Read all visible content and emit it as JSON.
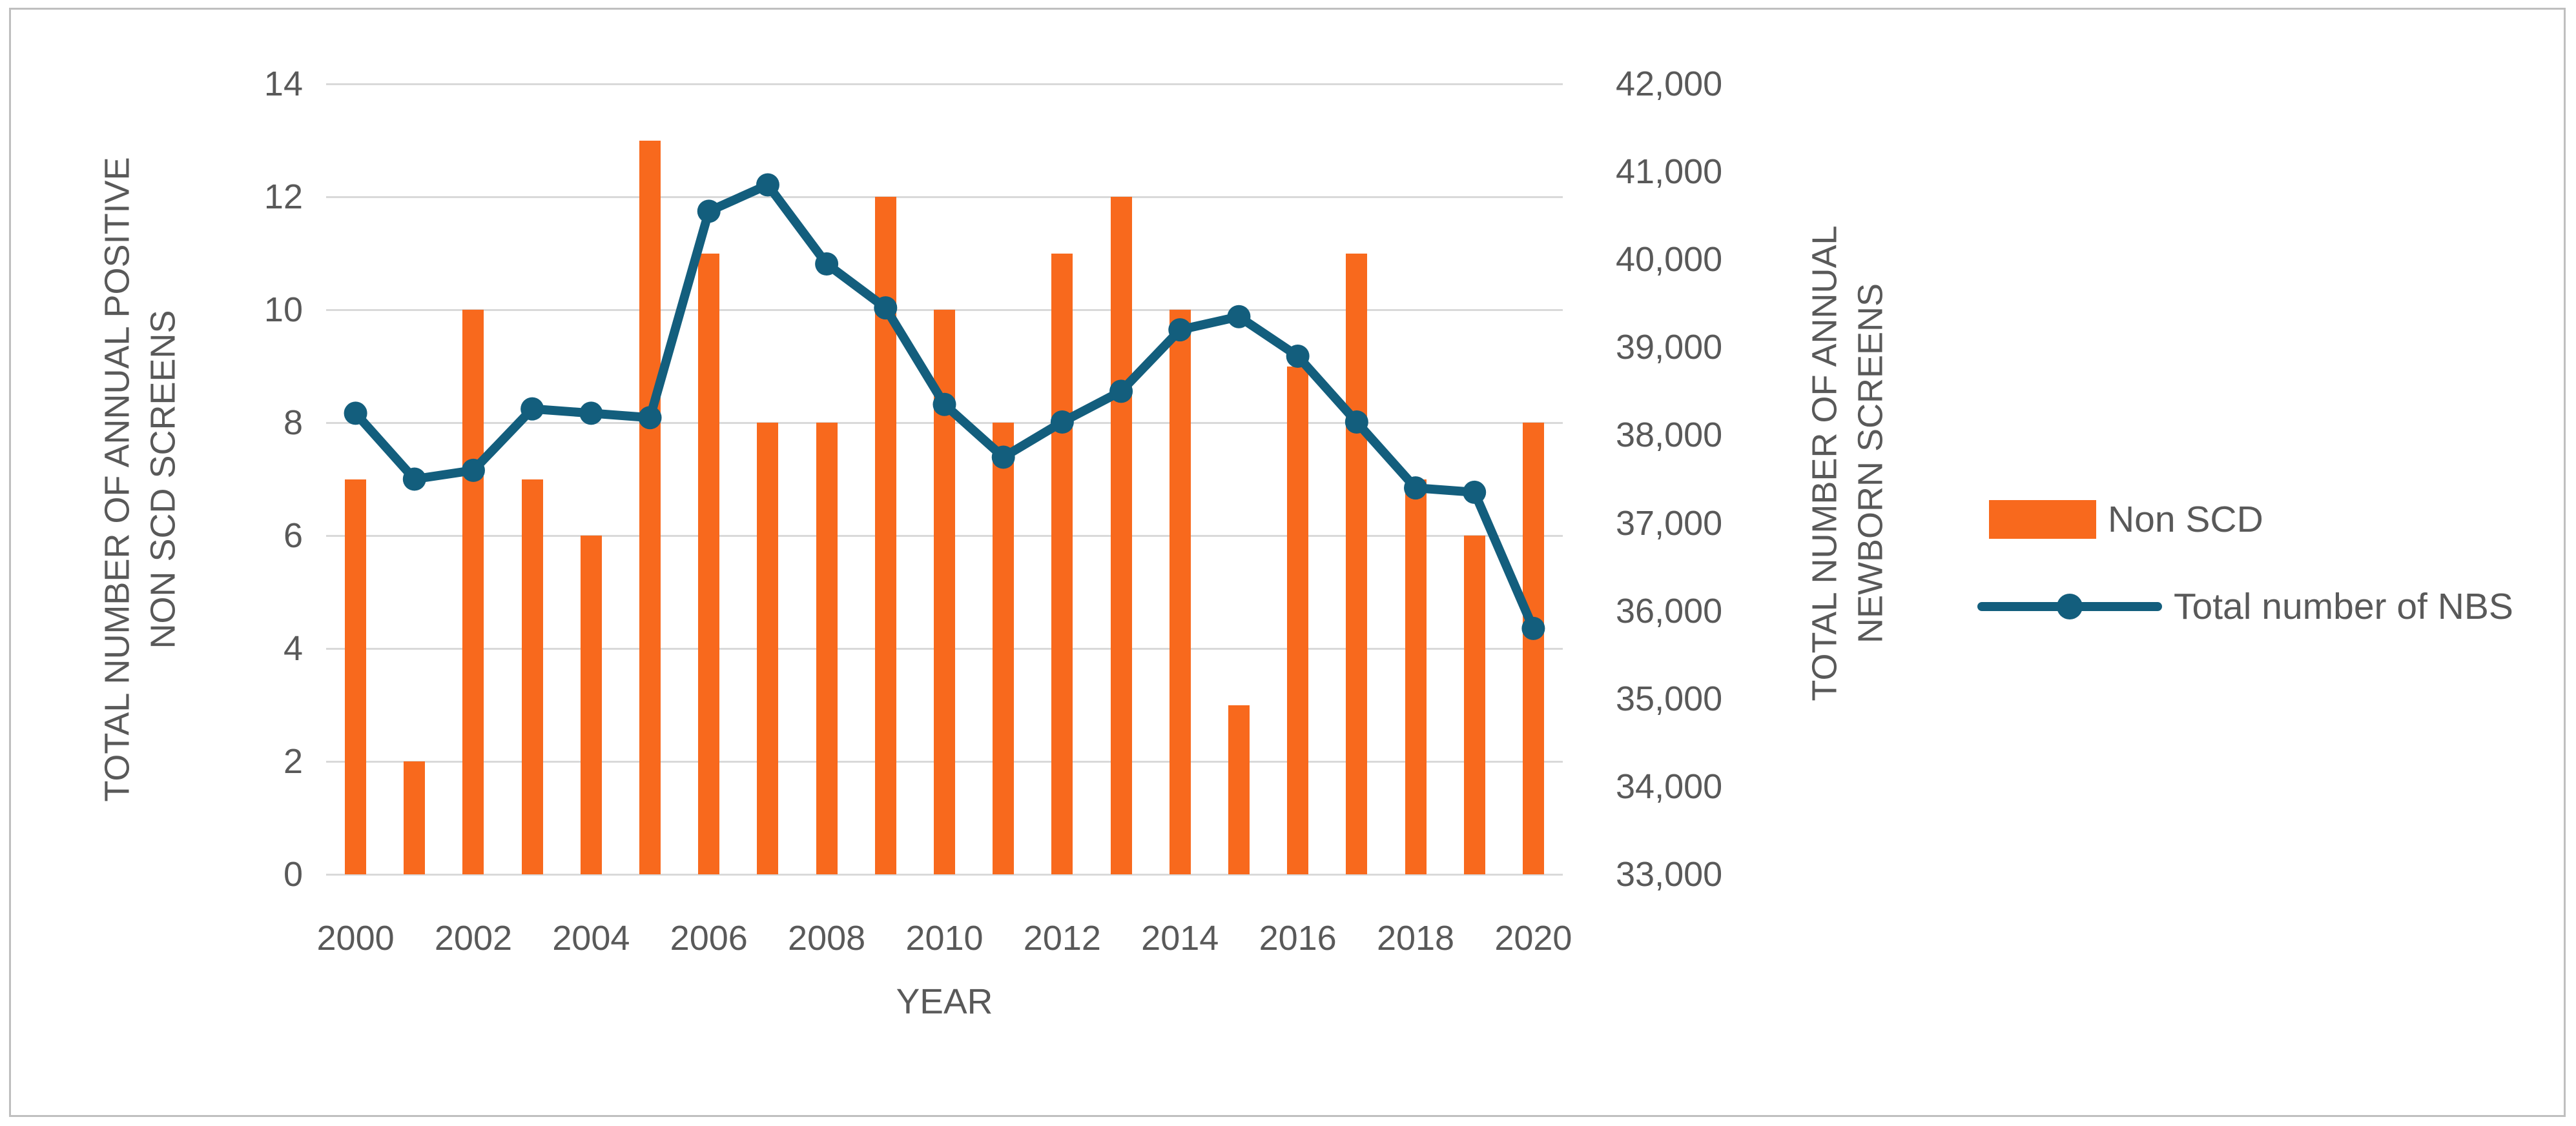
{
  "chart_data": {
    "type": "combo",
    "combo_types": [
      "bar",
      "line"
    ],
    "categories": [
      2000,
      2001,
      2002,
      2003,
      2004,
      2005,
      2006,
      2007,
      2008,
      2009,
      2010,
      2011,
      2012,
      2013,
      2014,
      2015,
      2016,
      2017,
      2018,
      2019,
      2020
    ],
    "series": [
      {
        "name": "Non SCD",
        "type": "bar",
        "axis": "left",
        "values": [
          7,
          2,
          10,
          7,
          6,
          13,
          11,
          8,
          8,
          12,
          10,
          8,
          11,
          12,
          10,
          3,
          9,
          11,
          7,
          6,
          8
        ]
      },
      {
        "name": "Total number of NBS",
        "type": "line",
        "axis": "right",
        "values": [
          38250,
          37500,
          37600,
          38300,
          38250,
          38200,
          40550,
          40850,
          39950,
          39450,
          38350,
          37750,
          38150,
          38500,
          39200,
          39350,
          38900,
          38150,
          37400,
          37350,
          35800
        ]
      }
    ],
    "left_axis": {
      "title_line1": "TOTAL NUMBER OF ANNUAL POSITIVE",
      "title_line2": "NON SCD SCREENS",
      "min": 0,
      "max": 14,
      "step": 2,
      "ticks": [
        "0",
        "2",
        "4",
        "6",
        "8",
        "10",
        "12",
        "14"
      ]
    },
    "right_axis": {
      "title_line1": "TOTAL NUMBER OF ANNUAL",
      "title_line2": "NEWBORN SCREENS",
      "min": 33000,
      "max": 42000,
      "step": 1000,
      "ticks": [
        "33,000",
        "34,000",
        "35,000",
        "36,000",
        "37,000",
        "38,000",
        "39,000",
        "40,000",
        "41,000",
        "42,000"
      ]
    },
    "x_axis": {
      "title": "YEAR",
      "tick_labels": [
        "2000",
        "2002",
        "2004",
        "2006",
        "2008",
        "2010",
        "2012",
        "2014",
        "2016",
        "2018",
        "2020"
      ]
    },
    "legend": {
      "position": "right",
      "items": [
        {
          "label": "Non SCD",
          "swatch": "bar"
        },
        {
          "label": "Total number of NBS",
          "swatch": "line-marker"
        }
      ]
    },
    "grid": "horizontal-only",
    "colors": {
      "bar": "#f8691d",
      "line": "#135e7d",
      "grid": "#d9d9d9",
      "text": "#595959",
      "frame_border": "#bfbfbf",
      "background": "#ffffff"
    }
  }
}
